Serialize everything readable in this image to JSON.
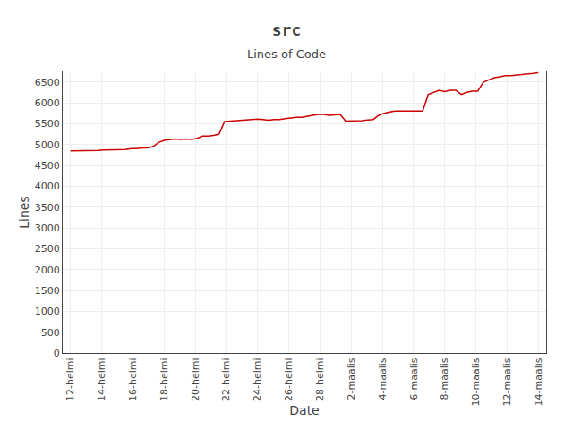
{
  "chart_data": {
    "type": "line",
    "title": "src",
    "subtitle": "Lines of Code",
    "xlabel": "Date",
    "ylabel": "Lines",
    "color": "#cc0000",
    "grid": true,
    "x": [
      0,
      0.3529,
      0.7059,
      1.0588,
      1.4118,
      1.7647,
      2.1176,
      2.4706,
      2.8235,
      3.1765,
      3.5294,
      3.8824,
      4.2353,
      4.5882,
      4.9412,
      5.2941,
      5.6471,
      6,
      6.3529,
      6.7059,
      7.0588,
      7.4118,
      7.7647,
      8.1176,
      8.4706,
      8.8235,
      9.1765,
      9.5294,
      9.8824,
      10.2353,
      10.5882,
      10.9412,
      11.2941,
      11.6471,
      12,
      12.3529,
      12.7059,
      13.0588,
      13.4118,
      13.7647,
      14.1176,
      14.4706,
      14.8235,
      15.1765,
      15.5294,
      15.8824,
      16.2353,
      16.5882,
      16.9412,
      17.2941,
      17.6471,
      18,
      18.3529,
      18.7059,
      19.0588,
      19.4118,
      19.7647,
      20.1176,
      20.4706,
      20.8235,
      21.1765,
      21.5294,
      21.8824,
      22.2353,
      22.5882,
      22.9412,
      23.2941,
      23.6471,
      24,
      24.3529,
      24.7059,
      25.0588,
      25.4118,
      25.7647,
      26.1176,
      26.4706,
      26.8235,
      27.1765,
      27.5294,
      27.8824,
      28.2353,
      28.5882,
      28.9412,
      29.2941,
      29.6471,
      30
    ],
    "values": [
      4850,
      4850,
      4850,
      4855,
      4855,
      4860,
      4870,
      4870,
      4880,
      4880,
      4880,
      4900,
      4900,
      4920,
      4920,
      4950,
      5050,
      5100,
      5120,
      5130,
      5120,
      5130,
      5120,
      5150,
      5200,
      5200,
      5220,
      5250,
      5550,
      5560,
      5580,
      5590,
      5600,
      5610,
      5610,
      5600,
      5580,
      5600,
      5600,
      5620,
      5640,
      5650,
      5650,
      5680,
      5700,
      5720,
      5720,
      5700,
      5710,
      5720,
      5560,
      5560,
      5560,
      5570,
      5590,
      5600,
      5700,
      5750,
      5780,
      5800,
      5800,
      5800,
      5800,
      5800,
      5800,
      6200,
      6250,
      6300,
      6270,
      6300,
      6300,
      6200,
      6250,
      6280,
      6280,
      6490,
      6550,
      6600,
      6620,
      6650,
      6650,
      6660,
      6680,
      6690,
      6700,
      6720
    ],
    "xlim": [
      -0.5,
      30.5
    ],
    "xticks": [
      {
        "value": 0,
        "label": "12-helmi"
      },
      {
        "value": 2,
        "label": "14-helmi"
      },
      {
        "value": 4,
        "label": "16-helmi"
      },
      {
        "value": 6,
        "label": "18-helmi"
      },
      {
        "value": 8,
        "label": "20-helmi"
      },
      {
        "value": 10,
        "label": "22-helmi"
      },
      {
        "value": 12,
        "label": "24-helmi"
      },
      {
        "value": 14,
        "label": "26-helmi"
      },
      {
        "value": 16,
        "label": "28-helmi"
      },
      {
        "value": 18,
        "label": "2-maalis"
      },
      {
        "value": 20,
        "label": "4-maalis"
      },
      {
        "value": 22,
        "label": "6-maalis"
      },
      {
        "value": 24,
        "label": "8-maalis"
      },
      {
        "value": 26,
        "label": "10-maalis"
      },
      {
        "value": 28,
        "label": "12-maalis"
      },
      {
        "value": 30,
        "label": "14-maalis"
      }
    ],
    "ylim": [
      0,
      6750
    ],
    "yticks": [
      0,
      500,
      1000,
      1500,
      2000,
      2500,
      3000,
      3500,
      4000,
      4500,
      5000,
      5500,
      6000,
      6500
    ]
  }
}
